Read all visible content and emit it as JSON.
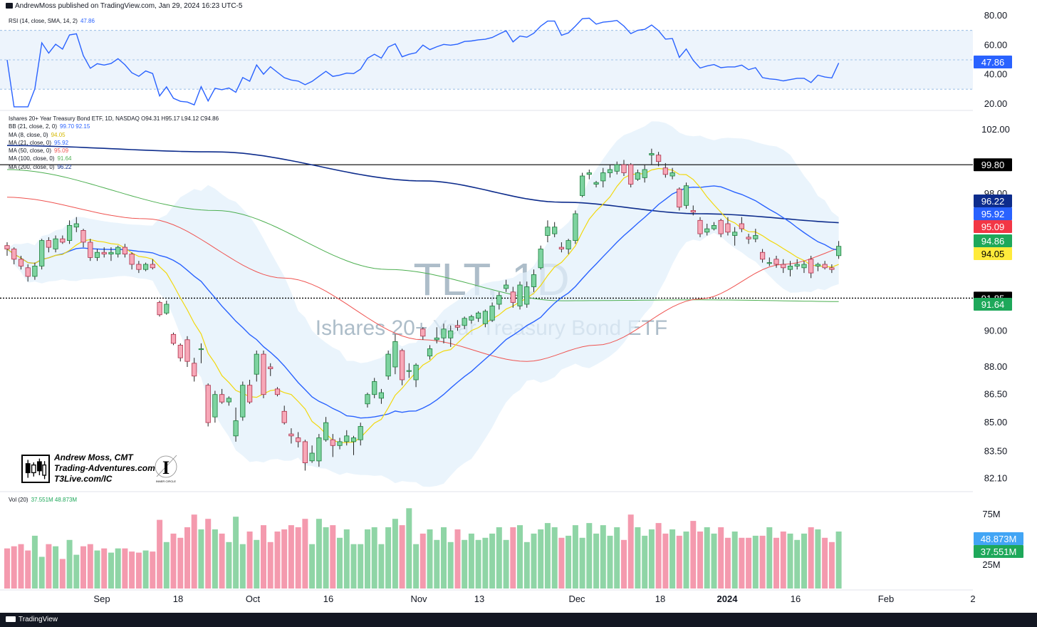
{
  "header": {
    "published": "AndrewMoss published on TradingView.com, Jan 29, 2024 16:23 UTC-5"
  },
  "footer": {
    "brand": "TradingView"
  },
  "watermark": {
    "symbol": "TLT, 1D",
    "name": "Ishares 20+ Year Treasury Bond ETF"
  },
  "branding": {
    "line1": "Andrew Moss, CMT",
    "line2": "Trading-Adventures.com",
    "line3": "T3Live.com/IC",
    "seal_text": "INNER CIRCLE"
  },
  "legends": {
    "rsi": {
      "label": "RSI (14, close, SMA, 14, 2)",
      "value": "47.86"
    },
    "main": [
      {
        "label": "Ishares 20+ Year Treasury Bond ETF, 1D, NASDAQ  O94.31  H95.17  L94.12  C94.86",
        "value": ""
      },
      {
        "label": "BB (21, close, 2, 0)",
        "value": "99.70  92.15"
      },
      {
        "label": "MA (8, close, 0)",
        "value": "94.05"
      },
      {
        "label": "MA (21, close, 0)",
        "value": "95.92"
      },
      {
        "label": "MA (50, close, 0)",
        "value": "95.09"
      },
      {
        "label": "MA (100, close, 0)",
        "value": "91.64"
      },
      {
        "label": "MA (200, close, 0)",
        "value": "96.22"
      }
    ],
    "vol": {
      "label": "Vol (20)",
      "value": "37.551M  48.873M"
    }
  },
  "colors": {
    "up": "#26a69a",
    "upFill": "#7dd3a0",
    "down": "#e0637a",
    "downFill": "#f7a8b8",
    "ma8": "#f5e042",
    "ma21": "#2962ff",
    "ma50": "#ef5350",
    "ma100": "#4caf50",
    "ma200": "#0d2c8c",
    "bbFill": "#e3f0fb",
    "rsiLine": "#2962ff"
  },
  "chart_data": {
    "type": "candlestick",
    "symbol": "TLT",
    "timeframe": "1D",
    "x_ticks": [
      "Sep",
      "18",
      "Oct",
      "16",
      "Nov",
      "13",
      "Dec",
      "18",
      "2024",
      "16",
      "Feb",
      "2"
    ],
    "price_axis": {
      "ticks": [
        "102.00",
        "98.00",
        "90.00",
        "88.00",
        "86.50",
        "85.00",
        "83.50",
        "82.10"
      ],
      "ylim": [
        81.5,
        103.0
      ],
      "scale": "log"
    },
    "rsi_axis": {
      "ticks": [
        "80.00",
        "60.00",
        "40.00",
        "20.00"
      ],
      "ylim": [
        17,
        82
      ],
      "bands": [
        30,
        50,
        70
      ]
    },
    "volume_axis": {
      "ticks": [
        "75M",
        "25M"
      ]
    },
    "horizontal_lines": [
      {
        "value": 99.8,
        "style": "solid",
        "label": "99.80"
      },
      {
        "value": 91.85,
        "style": "dotted",
        "label": "91.85"
      }
    ],
    "price_labels": [
      {
        "text": "96.22",
        "value": 96.22,
        "color": "#0d2c8c"
      },
      {
        "text": "95.92",
        "value": 95.92,
        "color": "#2962ff"
      },
      {
        "text": "95.09",
        "value": 95.09,
        "color": "#f23645"
      },
      {
        "text": "94.86",
        "value": 94.86,
        "color": "#1ea85a"
      },
      {
        "text": "94.05",
        "value": 94.05,
        "color": "#ffeb3b"
      },
      {
        "text": "91.64",
        "value": 91.64,
        "color": "#1ea85a"
      }
    ],
    "rsi_label": {
      "text": "47.86",
      "value": 47.86
    },
    "volume_labels": [
      {
        "text": "48.873M",
        "value": 48.873,
        "color": "#42a5f5"
      },
      {
        "text": "37.551M",
        "value": 37.551,
        "color": "#1ea85a"
      }
    ],
    "candles": [
      [
        94.9,
        95.1,
        94.3,
        94.7
      ],
      [
        94.7,
        94.8,
        93.8,
        94.1
      ],
      [
        94.1,
        94.3,
        93.5,
        93.7
      ],
      [
        93.6,
        93.8,
        92.8,
        93.1
      ],
      [
        93.1,
        93.9,
        92.9,
        93.7
      ],
      [
        93.7,
        95.3,
        93.5,
        95.2
      ],
      [
        95.2,
        95.4,
        94.5,
        94.8
      ],
      [
        94.7,
        95.5,
        94.5,
        95.3
      ],
      [
        95.3,
        95.5,
        95.0,
        95.1
      ],
      [
        95.2,
        96.4,
        95.0,
        96.1
      ],
      [
        96.0,
        96.6,
        95.7,
        96.2
      ],
      [
        95.8,
        95.9,
        94.8,
        95.1
      ],
      [
        95.1,
        95.3,
        94.0,
        94.2
      ],
      [
        94.2,
        94.7,
        94.0,
        94.5
      ],
      [
        94.5,
        94.8,
        94.2,
        94.4
      ],
      [
        94.4,
        94.8,
        94.0,
        94.5
      ],
      [
        94.4,
        94.9,
        94.2,
        94.8
      ],
      [
        94.8,
        95.0,
        94.2,
        94.4
      ],
      [
        94.4,
        94.5,
        93.5,
        93.8
      ],
      [
        93.8,
        94.0,
        93.3,
        93.5
      ],
      [
        93.5,
        93.9,
        93.4,
        93.8
      ],
      [
        93.8,
        94.1,
        93.5,
        93.6
      ],
      [
        91.6,
        91.7,
        90.8,
        90.9
      ],
      [
        91.0,
        91.7,
        90.9,
        91.5
      ],
      [
        89.8,
        89.9,
        89.2,
        89.3
      ],
      [
        89.2,
        89.3,
        88.3,
        88.5
      ],
      [
        89.5,
        89.7,
        88.0,
        88.3
      ],
      [
        88.2,
        88.5,
        87.2,
        87.5
      ],
      [
        89.0,
        89.3,
        88.2,
        89.0
      ],
      [
        87.0,
        87.1,
        84.8,
        85.0
      ],
      [
        85.3,
        86.7,
        85.0,
        86.5
      ],
      [
        86.5,
        86.8,
        86.0,
        86.1
      ],
      [
        86.1,
        86.4,
        85.9,
        86.3
      ],
      [
        84.3,
        85.8,
        84.0,
        85.1
      ],
      [
        85.3,
        87.2,
        85.1,
        87.0
      ],
      [
        87.0,
        87.3,
        86.0,
        86.1
      ],
      [
        87.6,
        88.9,
        87.2,
        88.7
      ],
      [
        88.7,
        88.9,
        86.3,
        86.5
      ],
      [
        88.0,
        88.2,
        87.5,
        87.9
      ],
      [
        86.8,
        86.9,
        86.4,
        86.5
      ],
      [
        85.6,
        85.9,
        84.9,
        85.0
      ],
      [
        84.4,
        84.7,
        83.9,
        84.3
      ],
      [
        84.2,
        84.5,
        83.7,
        84.0
      ],
      [
        84.0,
        84.1,
        82.5,
        82.9
      ],
      [
        83.0,
        83.8,
        82.9,
        83.4
      ],
      [
        83.0,
        84.4,
        82.7,
        84.2
      ],
      [
        84.1,
        85.3,
        84.0,
        85.0
      ],
      [
        84.1,
        84.4,
        83.2,
        83.8
      ],
      [
        83.8,
        84.2,
        83.6,
        84.0
      ],
      [
        84.0,
        84.6,
        83.8,
        84.3
      ],
      [
        84.0,
        84.3,
        83.3,
        84.2
      ],
      [
        84.1,
        85.0,
        83.8,
        84.8
      ],
      [
        86.0,
        86.6,
        85.8,
        86.5
      ],
      [
        86.5,
        87.4,
        86.3,
        87.2
      ],
      [
        86.3,
        86.8,
        86.0,
        86.6
      ],
      [
        87.5,
        88.9,
        87.3,
        88.7
      ],
      [
        88.0,
        89.8,
        87.6,
        89.4
      ],
      [
        88.9,
        89.0,
        87.0,
        87.3
      ],
      [
        87.8,
        88.2,
        87.4,
        87.8
      ],
      [
        87.3,
        88.2,
        86.9,
        88.1
      ],
      [
        90.1,
        90.2,
        89.5,
        89.7
      ],
      [
        88.6,
        89.2,
        88.4,
        89.0
      ],
      [
        89.5,
        90.2,
        89.3,
        89.6
      ],
      [
        89.6,
        90.4,
        89.3,
        90.1
      ],
      [
        89.6,
        90.3,
        89.1,
        90.0
      ],
      [
        90.3,
        90.6,
        90.0,
        90.2
      ],
      [
        90.3,
        90.8,
        90.1,
        90.7
      ],
      [
        90.6,
        90.9,
        90.4,
        90.8
      ],
      [
        90.7,
        91.1,
        90.5,
        91.0
      ],
      [
        90.4,
        91.2,
        90.2,
        91.1
      ],
      [
        90.6,
        91.6,
        90.5,
        91.4
      ],
      [
        91.5,
        92.2,
        91.2,
        92.0
      ],
      [
        92.4,
        92.9,
        92.2,
        92.6
      ],
      [
        92.2,
        92.5,
        91.3,
        91.6
      ],
      [
        91.4,
        92.8,
        91.2,
        92.6
      ],
      [
        91.5,
        92.8,
        91.3,
        92.5
      ],
      [
        92.5,
        93.5,
        92.2,
        93.2
      ],
      [
        93.6,
        94.9,
        93.5,
        94.7
      ],
      [
        95.5,
        96.4,
        95.1,
        96.0
      ],
      [
        95.6,
        96.3,
        95.4,
        96.0
      ],
      [
        94.8,
        95.1,
        94.5,
        94.7
      ],
      [
        94.7,
        95.3,
        94.4,
        95.2
      ],
      [
        95.2,
        97.0,
        95.0,
        96.8
      ],
      [
        97.9,
        99.3,
        97.8,
        99.1
      ],
      [
        99.2,
        99.5,
        98.9,
        99.3
      ],
      [
        98.6,
        98.8,
        98.4,
        98.7
      ],
      [
        98.8,
        99.6,
        98.4,
        99.3
      ],
      [
        99.3,
        99.8,
        99.0,
        99.5
      ],
      [
        99.4,
        100.0,
        99.2,
        99.8
      ],
      [
        99.8,
        100.1,
        99.1,
        99.3
      ],
      [
        99.8,
        99.9,
        98.4,
        98.6
      ],
      [
        98.9,
        99.5,
        98.8,
        99.3
      ],
      [
        99.0,
        99.8,
        98.7,
        99.5
      ],
      [
        100.4,
        100.8,
        99.8,
        100.5
      ],
      [
        100.4,
        100.6,
        99.7,
        100.0
      ],
      [
        99.6,
        99.9,
        99.0,
        99.2
      ],
      [
        99.1,
        99.6,
        98.9,
        99.3
      ],
      [
        98.3,
        98.4,
        97.0,
        97.2
      ],
      [
        97.3,
        98.7,
        97.1,
        98.5
      ],
      [
        97.0,
        97.3,
        96.7,
        96.9
      ],
      [
        96.4,
        96.6,
        95.4,
        95.6
      ],
      [
        95.7,
        96.2,
        95.5,
        95.9
      ],
      [
        95.9,
        96.3,
        95.8,
        96.1
      ],
      [
        96.4,
        96.5,
        95.4,
        95.6
      ],
      [
        96.2,
        96.6,
        95.5,
        95.7
      ],
      [
        95.5,
        96.0,
        94.9,
        95.7
      ],
      [
        96.2,
        96.6,
        95.7,
        95.9
      ],
      [
        95.4,
        95.6,
        95.0,
        95.3
      ],
      [
        95.3,
        95.9,
        95.1,
        95.5
      ],
      [
        94.5,
        94.7,
        93.9,
        94.1
      ],
      [
        93.9,
        94.2,
        93.7,
        93.9
      ],
      [
        94.1,
        94.3,
        93.6,
        93.8
      ],
      [
        93.8,
        94.1,
        93.3,
        93.6
      ],
      [
        93.5,
        94.0,
        93.1,
        93.7
      ],
      [
        93.7,
        94.1,
        93.5,
        93.8
      ],
      [
        93.6,
        94.0,
        93.3,
        93.8
      ],
      [
        94.1,
        94.3,
        93.0,
        93.3
      ],
      [
        93.7,
        93.9,
        93.4,
        93.8
      ],
      [
        93.8,
        94.0,
        93.5,
        93.6
      ],
      [
        93.6,
        93.8,
        93.3,
        93.5
      ],
      [
        94.31,
        95.17,
        94.12,
        94.86
      ]
    ],
    "volumes": [
      38,
      40,
      42,
      36,
      50,
      30,
      42,
      40,
      28,
      46,
      32,
      40,
      42,
      36,
      38,
      34,
      38,
      38,
      35,
      34,
      36,
      35,
      65,
      44,
      52,
      48,
      58,
      70,
      56,
      66,
      56,
      52,
      44,
      68,
      42,
      54,
      46,
      60,
      44,
      54,
      56,
      60,
      58,
      66,
      42,
      66,
      58,
      60,
      48,
      56,
      42,
      42,
      56,
      58,
      42,
      58,
      66,
      60,
      76,
      42,
      52,
      56,
      46,
      58,
      44,
      56,
      46,
      52,
      46,
      48,
      52,
      58,
      46,
      58,
      60,
      44,
      52,
      56,
      62,
      58,
      48,
      50,
      60,
      48,
      62,
      52,
      60,
      50,
      58,
      46,
      70,
      58,
      50,
      56,
      62,
      52,
      56,
      50,
      54,
      64,
      54,
      58,
      52,
      58,
      48,
      54,
      48,
      48,
      50,
      50,
      58,
      48,
      54,
      52,
      46,
      52,
      58,
      56,
      48,
      44,
      54
    ]
  }
}
